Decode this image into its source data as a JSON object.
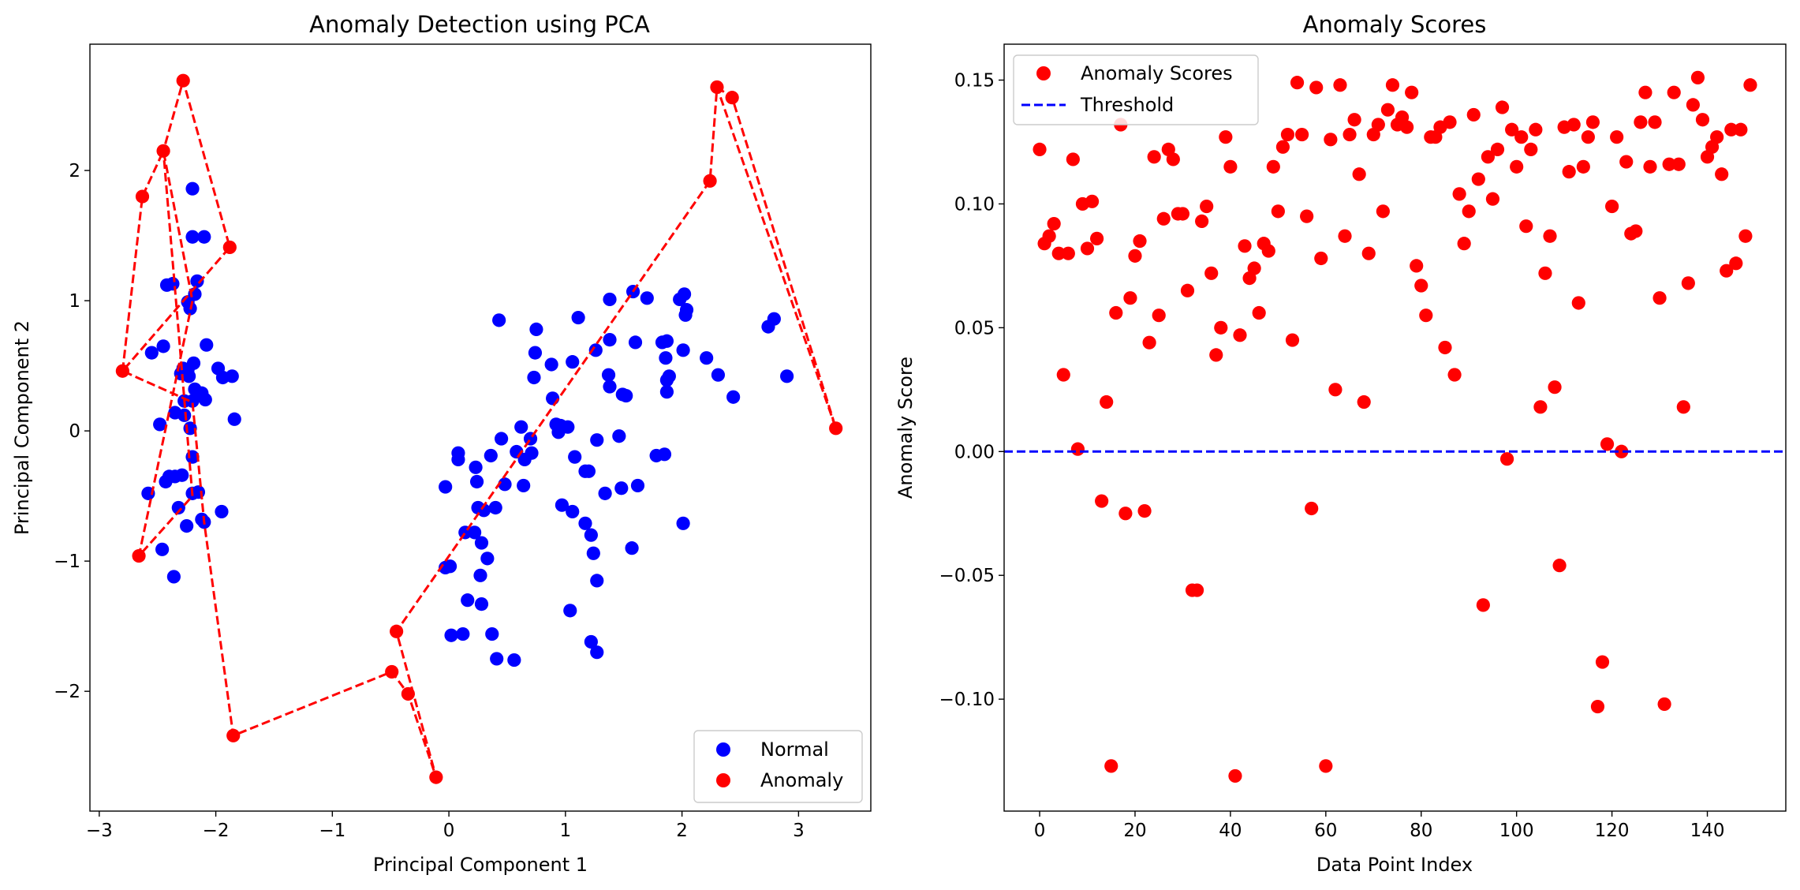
{
  "chart_data": [
    {
      "type": "scatter",
      "title": "Anomaly Detection using PCA",
      "xlabel": "Principal Component 1",
      "ylabel": "Principal Component 2",
      "xlim": [
        -3.08,
        3.62
      ],
      "ylim": [
        -2.92,
        2.97
      ],
      "xticks": [
        -3,
        -2,
        -1,
        0,
        1,
        2,
        3
      ],
      "xtick_labels": [
        "−3",
        "−2",
        "−1",
        "0",
        "1",
        "2",
        "3"
      ],
      "yticks": [
        -2,
        -1,
        0,
        1,
        2
      ],
      "ytick_labels": [
        "−2",
        "−1",
        "0",
        "1",
        "2"
      ],
      "grid": false,
      "legend": {
        "position": "lower-right",
        "entries": [
          "Normal",
          "Anomaly"
        ]
      },
      "colors": {
        "normal": "#0000ff",
        "anomaly": "#ff0000",
        "line": "#ff0000"
      },
      "series": [
        {
          "name": "Normal",
          "points": [
            [
              -2.2,
              1.86
            ],
            [
              -2.2,
              1.49
            ],
            [
              -2.1,
              1.49
            ],
            [
              -2.16,
              1.15
            ],
            [
              -2.37,
              1.13
            ],
            [
              -2.42,
              1.12
            ],
            [
              -2.18,
              1.05
            ],
            [
              -2.24,
              0.99
            ],
            [
              -2.22,
              0.94
            ],
            [
              -2.45,
              0.65
            ],
            [
              -2.55,
              0.6
            ],
            [
              -2.08,
              0.66
            ],
            [
              -2.28,
              0.48
            ],
            [
              -2.24,
              0.47
            ],
            [
              -2.19,
              0.52
            ],
            [
              -2.3,
              0.44
            ],
            [
              -2.23,
              0.42
            ],
            [
              -1.98,
              0.48
            ],
            [
              -1.94,
              0.41
            ],
            [
              -1.86,
              0.42
            ],
            [
              -2.18,
              0.32
            ],
            [
              -2.12,
              0.29
            ],
            [
              -2.09,
              0.24
            ],
            [
              -2.27,
              0.23
            ],
            [
              -2.2,
              0.23
            ],
            [
              -2.35,
              0.14
            ],
            [
              -2.27,
              0.12
            ],
            [
              -2.48,
              0.05
            ],
            [
              -2.22,
              0.02
            ],
            [
              -1.84,
              0.09
            ],
            [
              -2.2,
              -0.2
            ],
            [
              -2.35,
              -0.35
            ],
            [
              -2.4,
              -0.35
            ],
            [
              -2.29,
              -0.34
            ],
            [
              -2.43,
              -0.39
            ],
            [
              -2.58,
              -0.48
            ],
            [
              -2.2,
              -0.48
            ],
            [
              -2.15,
              -0.47
            ],
            [
              -2.32,
              -0.59
            ],
            [
              -2.12,
              -0.68
            ],
            [
              -2.1,
              -0.7
            ],
            [
              -1.95,
              -0.62
            ],
            [
              -2.25,
              -0.73
            ],
            [
              -2.46,
              -0.91
            ],
            [
              -2.36,
              -1.12
            ],
            [
              0.43,
              0.85
            ],
            [
              0.75,
              0.78
            ],
            [
              1.11,
              0.87
            ],
            [
              1.38,
              1.01
            ],
            [
              1.58,
              1.07
            ],
            [
              1.7,
              1.02
            ],
            [
              1.98,
              1.01
            ],
            [
              2.02,
              1.05
            ],
            [
              2.04,
              0.93
            ],
            [
              2.03,
              0.89
            ],
            [
              2.79,
              0.86
            ],
            [
              2.74,
              0.8
            ],
            [
              2.9,
              0.42
            ],
            [
              0.74,
              0.6
            ],
            [
              0.88,
              0.51
            ],
            [
              1.06,
              0.53
            ],
            [
              1.38,
              0.7
            ],
            [
              1.26,
              0.62
            ],
            [
              1.6,
              0.68
            ],
            [
              1.83,
              0.68
            ],
            [
              1.87,
              0.69
            ],
            [
              1.86,
              0.56
            ],
            [
              2.01,
              0.62
            ],
            [
              2.21,
              0.56
            ],
            [
              2.31,
              0.43
            ],
            [
              0.73,
              0.41
            ],
            [
              1.37,
              0.43
            ],
            [
              1.38,
              0.34
            ],
            [
              1.49,
              0.28
            ],
            [
              1.52,
              0.27
            ],
            [
              1.89,
              0.42
            ],
            [
              1.87,
              0.39
            ],
            [
              1.87,
              0.3
            ],
            [
              2.44,
              0.26
            ],
            [
              0.89,
              0.25
            ],
            [
              0.62,
              0.03
            ],
            [
              0.92,
              0.05
            ],
            [
              0.96,
              0.04
            ],
            [
              0.94,
              -0.01
            ],
            [
              1.02,
              0.03
            ],
            [
              0.7,
              -0.06
            ],
            [
              0.45,
              -0.06
            ],
            [
              1.27,
              -0.07
            ],
            [
              1.46,
              -0.04
            ],
            [
              0.58,
              -0.16
            ],
            [
              0.71,
              -0.17
            ],
            [
              0.36,
              -0.19
            ],
            [
              0.65,
              -0.22
            ],
            [
              0.08,
              -0.17
            ],
            [
              0.08,
              -0.22
            ],
            [
              0.23,
              -0.28
            ],
            [
              1.08,
              -0.2
            ],
            [
              1.17,
              -0.31
            ],
            [
              1.2,
              -0.31
            ],
            [
              0.24,
              -0.39
            ],
            [
              0.48,
              -0.41
            ],
            [
              0.64,
              -0.42
            ],
            [
              -0.03,
              -0.43
            ],
            [
              1.34,
              -0.48
            ],
            [
              1.48,
              -0.44
            ],
            [
              1.62,
              -0.42
            ],
            [
              1.78,
              -0.19
            ],
            [
              1.85,
              -0.18
            ],
            [
              0.97,
              -0.57
            ],
            [
              1.06,
              -0.62
            ],
            [
              1.17,
              -0.71
            ],
            [
              0.25,
              -0.59
            ],
            [
              0.3,
              -0.61
            ],
            [
              0.4,
              -0.59
            ],
            [
              0.14,
              -0.78
            ],
            [
              0.22,
              -0.78
            ],
            [
              0.28,
              -0.86
            ],
            [
              1.22,
              -0.8
            ],
            [
              2.01,
              -0.71
            ],
            [
              0.33,
              -0.98
            ],
            [
              1.24,
              -0.94
            ],
            [
              1.57,
              -0.9
            ],
            [
              -0.03,
              -1.05
            ],
            [
              0.01,
              -1.04
            ],
            [
              0.27,
              -1.11
            ],
            [
              1.27,
              -1.15
            ],
            [
              0.16,
              -1.3
            ],
            [
              0.28,
              -1.33
            ],
            [
              1.04,
              -1.38
            ],
            [
              0.02,
              -1.57
            ],
            [
              0.12,
              -1.56
            ],
            [
              0.37,
              -1.56
            ],
            [
              1.22,
              -1.62
            ],
            [
              1.27,
              -1.7
            ],
            [
              0.41,
              -1.75
            ],
            [
              0.56,
              -1.76
            ]
          ]
        },
        {
          "name": "Anomaly",
          "points": [
            [
              -2.8,
              0.46
            ],
            [
              -2.63,
              1.8
            ],
            [
              -2.45,
              2.15
            ],
            [
              -2.28,
              2.69
            ],
            [
              -1.88,
              1.41
            ],
            [
              -2.66,
              -0.96
            ],
            [
              -1.85,
              -2.34
            ],
            [
              -0.49,
              -1.85
            ],
            [
              -0.45,
              -1.54
            ],
            [
              -0.35,
              -2.02
            ],
            [
              -0.11,
              -2.66
            ],
            [
              2.24,
              1.92
            ],
            [
              2.3,
              2.64
            ],
            [
              2.43,
              2.56
            ],
            [
              3.32,
              0.02
            ]
          ],
          "path": [
            [
              -2.8,
              0.46
            ],
            [
              -2.63,
              1.8
            ],
            [
              -2.45,
              2.15
            ],
            [
              -2.2,
              1.0
            ],
            [
              -2.66,
              -0.96
            ],
            [
              -2.2,
              -0.5
            ],
            [
              -2.45,
              2.15
            ],
            [
              -2.28,
              2.69
            ],
            [
              -1.88,
              1.41
            ],
            [
              -2.8,
              0.46
            ],
            [
              -2.2,
              0.22
            ],
            [
              -2.1,
              -0.7
            ],
            [
              -1.85,
              -2.34
            ],
            [
              -0.49,
              -1.85
            ],
            [
              -0.35,
              -2.02
            ],
            [
              -0.11,
              -2.66
            ],
            [
              -0.45,
              -1.54
            ],
            [
              2.24,
              1.92
            ],
            [
              2.3,
              2.64
            ],
            [
              3.32,
              0.02
            ],
            [
              2.43,
              2.56
            ],
            [
              2.3,
              2.64
            ]
          ]
        }
      ]
    },
    {
      "type": "scatter",
      "title": "Anomaly Scores",
      "xlabel": "Data Point Index",
      "ylabel": "Anomaly Score",
      "xlim": [
        -7.45,
        156.45
      ],
      "ylim": [
        -0.1452,
        0.1645
      ],
      "xticks": [
        0,
        20,
        40,
        60,
        80,
        100,
        120,
        140
      ],
      "xtick_labels": [
        "0",
        "20",
        "40",
        "60",
        "80",
        "100",
        "120",
        "140"
      ],
      "yticks": [
        -0.1,
        -0.05,
        0.0,
        0.05,
        0.1,
        0.15
      ],
      "ytick_labels": [
        "−0.10",
        "−0.05",
        "0.00",
        "0.05",
        "0.10",
        "0.15"
      ],
      "grid": false,
      "legend": {
        "position": "upper-left",
        "entries": [
          "Anomaly Scores",
          "Threshold"
        ]
      },
      "colors": {
        "scores": "#ff0000",
        "threshold": "#0000ff"
      },
      "threshold": 0.0,
      "series": [
        {
          "name": "Anomaly Scores",
          "values": [
            0.122,
            0.084,
            0.087,
            0.092,
            0.08,
            0.031,
            0.08,
            0.118,
            0.001,
            0.1,
            0.082,
            0.101,
            0.086,
            -0.02,
            0.02,
            -0.127,
            0.056,
            0.132,
            -0.025,
            0.062,
            0.079,
            0.085,
            -0.024,
            0.044,
            0.119,
            0.055,
            0.094,
            0.122,
            0.118,
            0.096,
            0.096,
            0.065,
            -0.056,
            -0.056,
            0.093,
            0.099,
            0.072,
            0.039,
            0.05,
            0.127,
            0.115,
            -0.131,
            0.047,
            0.083,
            0.07,
            0.074,
            0.056,
            0.084,
            0.081,
            0.115,
            0.097,
            0.123,
            0.128,
            0.045,
            0.149,
            0.128,
            0.095,
            -0.023,
            0.147,
            0.078,
            -0.127,
            0.126,
            0.025,
            0.148,
            0.087,
            0.128,
            0.134,
            0.112,
            0.02,
            0.08,
            0.128,
            0.132,
            0.097,
            0.138,
            0.148,
            0.132,
            0.135,
            0.131,
            0.145,
            0.075,
            0.067,
            0.055,
            0.127,
            0.127,
            0.131,
            0.042,
            0.133,
            0.031,
            0.104,
            0.084,
            0.097,
            0.136,
            0.11,
            -0.062,
            0.119,
            0.102,
            0.122,
            0.139,
            -0.003,
            0.13,
            0.115,
            0.127,
            0.091,
            0.122,
            0.13,
            0.018,
            0.072,
            0.087,
            0.026,
            -0.046,
            0.131,
            0.113,
            0.132,
            0.06,
            0.115,
            0.127,
            0.133,
            -0.103,
            -0.085,
            0.003,
            0.099,
            0.127,
            0.0,
            0.117,
            0.088,
            0.089,
            0.133,
            0.145,
            0.115,
            0.133,
            0.062,
            -0.102,
            0.116,
            0.145,
            0.116,
            0.018,
            0.068,
            0.14,
            0.151,
            0.134,
            0.119,
            0.123,
            0.127,
            0.112,
            0.073,
            0.13,
            0.076,
            0.13,
            0.087,
            0.148
          ]
        },
        {
          "name": "Threshold",
          "y": 0.0
        }
      ]
    }
  ]
}
